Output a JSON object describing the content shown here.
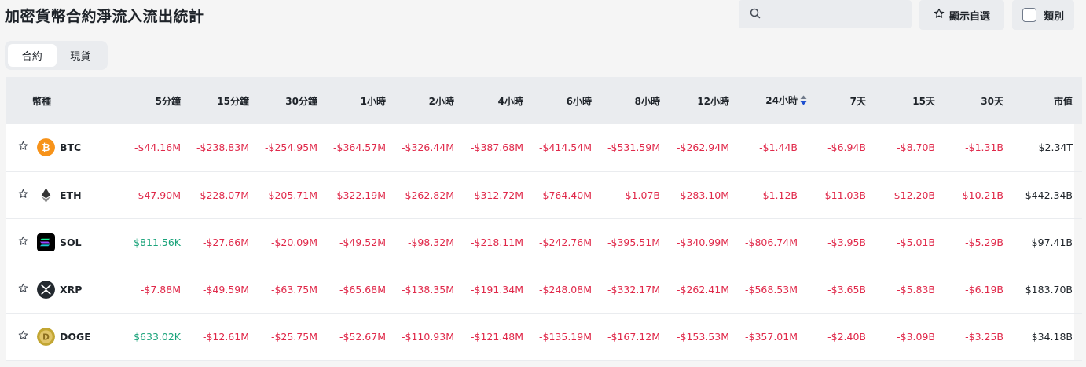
{
  "page": {
    "title": "加密貨幣合約淨流入流出統計"
  },
  "toolbar": {
    "search_placeholder": "",
    "favorites_label": "顯示自選",
    "category_label": "類別"
  },
  "tabs": [
    {
      "label": "合約",
      "active": true
    },
    {
      "label": "現貨",
      "active": false
    }
  ],
  "table": {
    "columns": [
      "幣種",
      "5分鐘",
      "15分鐘",
      "30分鐘",
      "1小時",
      "2小時",
      "4小時",
      "6小時",
      "8小時",
      "12小時",
      "24小時",
      "7天",
      "15天",
      "30天",
      "市值"
    ],
    "sorted_column": "24小時",
    "rows": [
      {
        "symbol": "BTC",
        "icon": "bitcoin-icon",
        "values": [
          "-$44.16M",
          "-$238.83M",
          "-$254.95M",
          "-$364.57M",
          "-$326.44M",
          "-$387.68M",
          "-$414.54M",
          "-$531.59M",
          "-$262.94M",
          "-$1.44B",
          "-$6.94B",
          "-$8.70B",
          "-$1.31B"
        ],
        "market_cap": "$2.34T"
      },
      {
        "symbol": "ETH",
        "icon": "ethereum-icon",
        "values": [
          "-$47.90M",
          "-$228.07M",
          "-$205.71M",
          "-$322.19M",
          "-$262.82M",
          "-$312.72M",
          "-$764.40M",
          "-$1.07B",
          "-$283.10M",
          "-$1.12B",
          "-$11.03B",
          "-$12.20B",
          "-$10.21B"
        ],
        "market_cap": "$442.34B"
      },
      {
        "symbol": "SOL",
        "icon": "solana-icon",
        "values": [
          "$811.56K",
          "-$27.66M",
          "-$20.09M",
          "-$49.52M",
          "-$98.32M",
          "-$218.11M",
          "-$242.76M",
          "-$395.51M",
          "-$340.99M",
          "-$806.74M",
          "-$3.95B",
          "-$5.01B",
          "-$5.29B"
        ],
        "market_cap": "$97.41B"
      },
      {
        "symbol": "XRP",
        "icon": "xrp-icon",
        "values": [
          "-$7.88M",
          "-$49.59M",
          "-$63.75M",
          "-$65.68M",
          "-$138.35M",
          "-$191.34M",
          "-$248.08M",
          "-$332.17M",
          "-$262.41M",
          "-$568.53M",
          "-$3.65B",
          "-$5.83B",
          "-$6.19B"
        ],
        "market_cap": "$183.70B"
      },
      {
        "symbol": "DOGE",
        "icon": "dogecoin-icon",
        "values": [
          "$633.02K",
          "-$12.61M",
          "-$25.75M",
          "-$52.67M",
          "-$110.93M",
          "-$121.48M",
          "-$135.19M",
          "-$167.12M",
          "-$153.53M",
          "-$357.01M",
          "-$2.40B",
          "-$3.09B",
          "-$3.25B"
        ],
        "market_cap": "$34.18B"
      }
    ]
  },
  "colors": {
    "negative": "#e0294a",
    "positive": "#1aa37a",
    "btc": "#f7931a",
    "doge": "#c2a633"
  }
}
